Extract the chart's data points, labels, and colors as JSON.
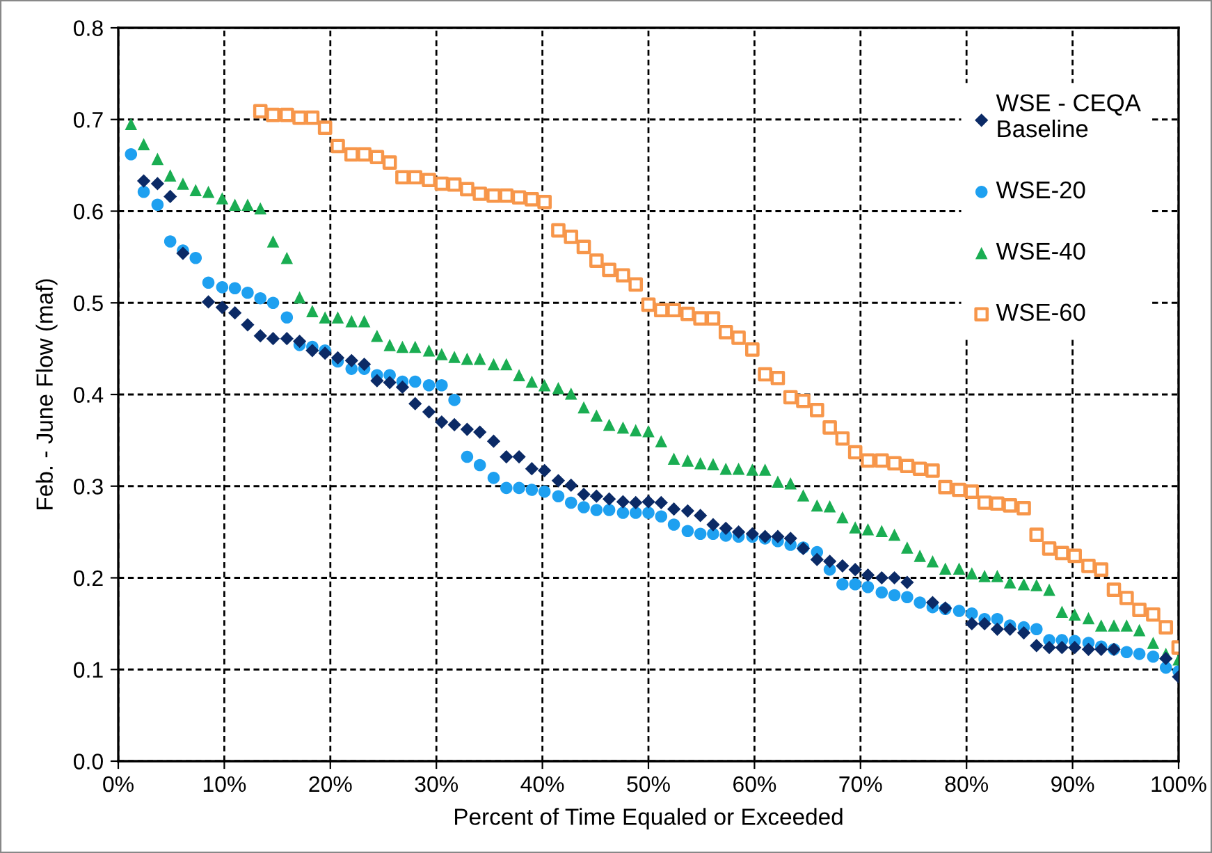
{
  "chart_data": {
    "type": "scatter",
    "xlabel": "Percent of Time Equaled or Exceeded",
    "ylabel": "Feb. - June Flow (maf)",
    "x": [
      1.2,
      2.4,
      3.7,
      4.9,
      6.1,
      7.3,
      8.5,
      9.8,
      11.0,
      12.2,
      13.4,
      14.6,
      15.9,
      17.1,
      18.3,
      19.5,
      20.7,
      22.0,
      23.2,
      24.4,
      25.6,
      26.8,
      28.0,
      29.3,
      30.5,
      31.7,
      32.9,
      34.1,
      35.4,
      36.6,
      37.8,
      39.0,
      40.2,
      41.5,
      42.7,
      43.9,
      45.1,
      46.3,
      47.6,
      48.8,
      50.0,
      51.2,
      52.4,
      53.7,
      54.9,
      56.1,
      57.3,
      58.5,
      59.8,
      61.0,
      62.2,
      63.4,
      64.6,
      65.9,
      67.1,
      68.3,
      69.5,
      70.7,
      72.0,
      73.2,
      74.4,
      75.6,
      76.8,
      78.0,
      79.3,
      80.5,
      81.7,
      82.9,
      84.1,
      85.4,
      86.6,
      87.8,
      89.0,
      90.2,
      91.5,
      92.7,
      93.9,
      95.1,
      96.3,
      97.6,
      98.8,
      100
    ],
    "series": [
      {
        "name": "WSE - CEQA\nBaseline",
        "color": "#0b2a66",
        "marker": "diamond",
        "values": [
          null,
          0.633,
          0.63,
          0.616,
          0.554,
          null,
          0.501,
          0.495,
          0.489,
          0.476,
          0.464,
          0.461,
          0.461,
          0.458,
          0.448,
          0.445,
          0.44,
          0.437,
          0.433,
          0.415,
          0.413,
          0.408,
          0.39,
          0.381,
          0.37,
          0.367,
          0.362,
          0.359,
          0.349,
          0.332,
          0.332,
          0.319,
          0.317,
          0.306,
          0.301,
          0.291,
          0.289,
          0.286,
          0.283,
          0.282,
          0.283,
          0.282,
          0.275,
          0.273,
          0.268,
          0.258,
          0.254,
          0.25,
          0.248,
          0.245,
          0.245,
          0.243,
          0.232,
          0.22,
          0.218,
          0.213,
          0.209,
          0.203,
          0.2,
          0.2,
          0.195,
          null,
          0.173,
          0.167,
          null,
          0.15,
          0.15,
          0.144,
          0.144,
          0.14,
          0.126,
          0.124,
          0.124,
          0.124,
          0.122,
          0.122,
          0.122,
          null,
          null,
          null,
          0.112,
          0.092
        ]
      },
      {
        "name": "WSE-20",
        "color": "#1ea0f0",
        "marker": "circle",
        "values": [
          0.662,
          0.621,
          0.607,
          0.567,
          0.557,
          0.549,
          0.522,
          0.517,
          0.516,
          0.511,
          0.505,
          0.5,
          0.484,
          0.454,
          0.452,
          0.448,
          0.436,
          0.428,
          0.428,
          0.421,
          0.421,
          0.414,
          0.414,
          0.41,
          0.41,
          0.394,
          0.332,
          0.323,
          0.309,
          0.298,
          0.298,
          0.296,
          0.294,
          0.289,
          0.282,
          0.277,
          0.274,
          0.274,
          0.271,
          0.271,
          0.271,
          0.267,
          0.258,
          0.251,
          0.248,
          0.248,
          0.246,
          0.245,
          0.245,
          0.243,
          0.24,
          0.236,
          0.233,
          0.228,
          0.209,
          0.193,
          0.193,
          0.19,
          0.184,
          0.181,
          0.179,
          0.173,
          0.168,
          0.166,
          0.164,
          0.161,
          0.155,
          0.155,
          0.148,
          0.146,
          0.144,
          0.132,
          0.132,
          0.131,
          0.129,
          0.125,
          0.122,
          0.119,
          0.117,
          0.114,
          0.102,
          0.098
        ]
      },
      {
        "name": "WSE-40",
        "color": "#1aad52",
        "marker": "triangle",
        "values": [
          0.695,
          0.673,
          0.657,
          0.639,
          0.63,
          0.623,
          0.621,
          0.614,
          0.607,
          0.607,
          0.603,
          0.567,
          0.549,
          0.506,
          0.491,
          0.484,
          0.484,
          0.48,
          0.48,
          0.464,
          0.454,
          0.452,
          0.452,
          0.448,
          0.444,
          0.441,
          0.439,
          0.439,
          0.433,
          0.433,
          0.421,
          0.414,
          0.41,
          0.407,
          0.401,
          0.386,
          0.377,
          0.367,
          0.364,
          0.361,
          0.36,
          0.349,
          0.33,
          0.328,
          0.325,
          0.324,
          0.319,
          0.319,
          0.318,
          0.318,
          0.305,
          0.303,
          0.29,
          0.279,
          0.278,
          0.266,
          0.255,
          0.253,
          0.251,
          0.247,
          0.233,
          0.224,
          0.218,
          0.21,
          0.21,
          0.205,
          0.202,
          0.202,
          0.195,
          0.193,
          0.192,
          0.187,
          0.163,
          0.16,
          0.156,
          0.148,
          0.148,
          0.148,
          0.143,
          0.129,
          0.117,
          0.111
        ]
      },
      {
        "name": "WSE-60",
        "color": "#f7964a",
        "marker": "square",
        "values": [
          null,
          null,
          null,
          null,
          null,
          null,
          null,
          null,
          null,
          null,
          0.709,
          0.705,
          0.705,
          0.702,
          0.702,
          0.691,
          0.671,
          0.662,
          0.662,
          0.659,
          0.653,
          0.637,
          0.637,
          0.634,
          0.63,
          0.629,
          0.624,
          0.619,
          0.617,
          0.617,
          0.615,
          0.613,
          0.61,
          0.579,
          0.572,
          0.561,
          0.546,
          0.536,
          0.53,
          0.52,
          0.498,
          0.492,
          0.492,
          0.488,
          0.483,
          0.483,
          0.468,
          0.462,
          0.449,
          0.422,
          0.418,
          0.397,
          0.393,
          0.383,
          0.364,
          0.352,
          0.337,
          0.328,
          0.328,
          0.325,
          0.322,
          0.319,
          0.317,
          0.299,
          0.296,
          0.294,
          0.282,
          0.281,
          0.279,
          0.276,
          0.247,
          0.232,
          0.227,
          0.224,
          0.213,
          0.209,
          0.187,
          0.178,
          0.165,
          0.16,
          0.146,
          0.124
        ]
      }
    ],
    "xlim": [
      0,
      100
    ],
    "xticks": [
      {
        "value": 0,
        "label": "0%"
      },
      {
        "value": 10,
        "label": "10%"
      },
      {
        "value": 20,
        "label": "20%"
      },
      {
        "value": 30,
        "label": "30%"
      },
      {
        "value": 40,
        "label": "40%"
      },
      {
        "value": 50,
        "label": "50%"
      },
      {
        "value": 60,
        "label": "60%"
      },
      {
        "value": 70,
        "label": "70%"
      },
      {
        "value": 80,
        "label": "80%"
      },
      {
        "value": 90,
        "label": "90%"
      },
      {
        "value": 100,
        "label": "100%"
      }
    ],
    "ylim": [
      0,
      0.8
    ],
    "yticks": [
      {
        "value": 0,
        "label": "0.0"
      },
      {
        "value": 0.1,
        "label": "0.1"
      },
      {
        "value": 0.2,
        "label": "0.2"
      },
      {
        "value": 0.3,
        "label": "0.3"
      },
      {
        "value": 0.4,
        "label": "0.4"
      },
      {
        "value": 0.5,
        "label": "0.5"
      },
      {
        "value": 0.6,
        "label": "0.6"
      },
      {
        "value": 0.7,
        "label": "0.7"
      },
      {
        "value": 0.8,
        "label": "0.8"
      }
    ],
    "grid": true,
    "legend": "top right"
  }
}
